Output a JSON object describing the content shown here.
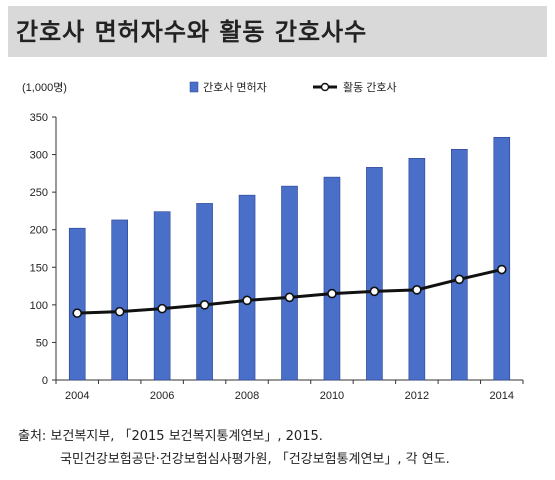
{
  "title": "간호사 면허자수와 활동 간호사수",
  "source": {
    "line1": "출처: 보건복지부, 「2015 보건복지통계연보」, 2015.",
    "line2": "국민건강보험공단·건강보험심사평가원, 「건강보험통계연보」, 각 연도."
  },
  "colors": {
    "bar": "#4a6fc9",
    "bar_edge": "#2a4290",
    "line": "#111111",
    "title_band": "#d9d9d9"
  },
  "chart_data": {
    "type": "bar",
    "unit_label": "(1,000명)",
    "categories": [
      "2004",
      "2005",
      "2006",
      "2007",
      "2008",
      "2009",
      "2010",
      "2011",
      "2012",
      "2013",
      "2014"
    ],
    "x_tick_labels": [
      "2004",
      "2006",
      "2008",
      "2010",
      "2012",
      "2014"
    ],
    "series": [
      {
        "name": "간호사 면허자",
        "kind": "bar",
        "values": [
          202,
          213,
          224,
          235,
          246,
          258,
          270,
          283,
          295,
          307,
          323
        ]
      },
      {
        "name": "활동 간호사",
        "kind": "line",
        "values": [
          89,
          91,
          95,
          100,
          106,
          110,
          115,
          118,
          120,
          134,
          147
        ]
      }
    ],
    "ylim": [
      0,
      350
    ],
    "yticks": [
      0,
      50,
      100,
      150,
      200,
      250,
      300,
      350
    ],
    "legend_position": "top",
    "grid": false
  }
}
